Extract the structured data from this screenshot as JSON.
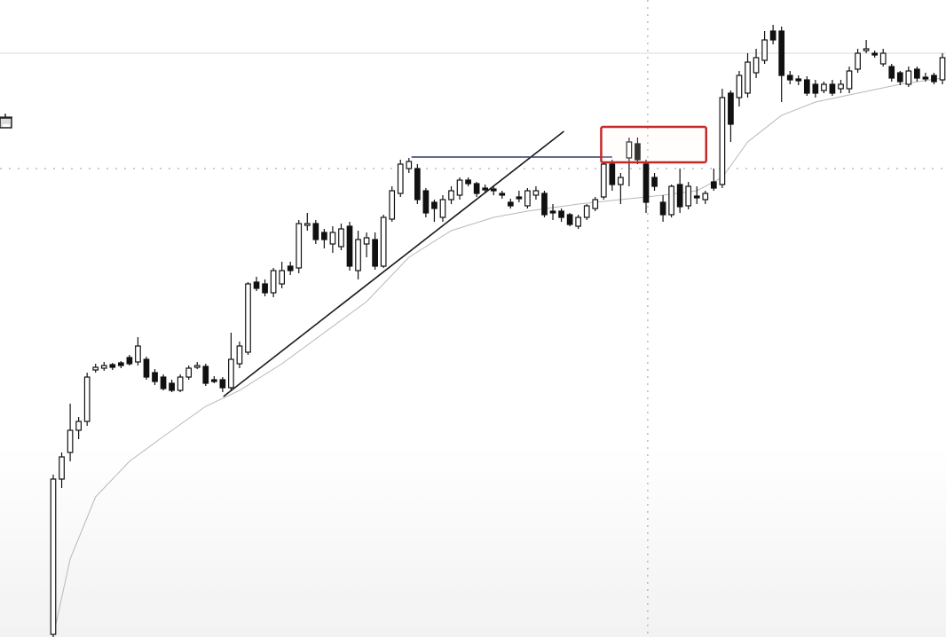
{
  "chart_data": {
    "type": "candlestick",
    "title": "",
    "xlabel": "",
    "ylabel": "",
    "grid": false,
    "xlim": [
      0,
      105
    ],
    "ylim": [
      0,
      720
    ],
    "candle_fields": [
      "open",
      "high",
      "low",
      "close"
    ],
    "candles": [
      [
        5,
        185,
        2,
        180
      ],
      [
        180,
        210,
        170,
        205
      ],
      [
        210,
        265,
        200,
        235
      ],
      [
        235,
        250,
        225,
        245
      ],
      [
        245,
        300,
        240,
        295
      ],
      [
        303,
        310,
        300,
        306
      ],
      [
        305,
        312,
        302,
        308
      ],
      [
        309,
        311,
        303,
        306
      ],
      [
        311,
        313,
        305,
        308
      ],
      [
        317,
        320,
        308,
        310
      ],
      [
        312,
        340,
        308,
        330
      ],
      [
        315,
        318,
        292,
        295
      ],
      [
        300,
        304,
        286,
        290
      ],
      [
        295,
        298,
        280,
        282
      ],
      [
        288,
        292,
        278,
        280
      ],
      [
        280,
        298,
        278,
        295
      ],
      [
        295,
        308,
        292,
        305
      ],
      [
        306,
        312,
        304,
        308
      ],
      [
        307,
        310,
        285,
        288
      ],
      [
        292,
        296,
        288,
        290
      ],
      [
        292,
        295,
        278,
        283
      ],
      [
        283,
        345,
        280,
        315
      ],
      [
        310,
        335,
        305,
        330
      ],
      [
        323,
        402,
        320,
        400
      ],
      [
        402,
        408,
        392,
        395
      ],
      [
        400,
        405,
        386,
        390
      ],
      [
        390,
        418,
        385,
        415
      ],
      [
        400,
        425,
        395,
        415
      ],
      [
        420,
        425,
        410,
        415
      ],
      [
        418,
        472,
        412,
        468
      ],
      [
        466,
        480,
        460,
        468
      ],
      [
        468,
        472,
        445,
        450
      ],
      [
        458,
        462,
        440,
        450
      ],
      [
        445,
        465,
        435,
        458
      ],
      [
        442,
        468,
        438,
        462
      ],
      [
        465,
        470,
        415,
        420
      ],
      [
        415,
        460,
        405,
        450
      ],
      [
        445,
        458,
        430,
        452
      ],
      [
        450,
        458,
        416,
        420
      ],
      [
        420,
        478,
        418,
        475
      ],
      [
        473,
        510,
        470,
        505
      ],
      [
        502,
        540,
        498,
        535
      ],
      [
        530,
        542,
        525,
        538
      ],
      [
        530,
        535,
        490,
        495
      ],
      [
        505,
        508,
        475,
        480
      ],
      [
        492,
        495,
        470,
        485
      ],
      [
        475,
        500,
        470,
        495
      ],
      [
        495,
        510,
        490,
        505
      ],
      [
        500,
        520,
        495,
        517
      ],
      [
        517,
        520,
        510,
        513
      ],
      [
        513,
        515,
        498,
        502
      ],
      [
        508,
        512,
        502,
        506
      ],
      [
        507,
        510,
        500,
        505
      ],
      [
        502,
        505,
        496,
        500
      ],
      [
        492,
        496,
        485,
        488
      ],
      [
        498,
        505,
        492,
        496
      ],
      [
        488,
        508,
        485,
        505
      ],
      [
        500,
        510,
        495,
        505
      ],
      [
        502,
        505,
        475,
        478
      ],
      [
        482,
        490,
        472,
        480
      ],
      [
        482,
        485,
        470,
        475
      ],
      [
        478,
        480,
        465,
        467
      ],
      [
        465,
        478,
        462,
        475
      ],
      [
        475,
        490,
        472,
        488
      ],
      [
        485,
        498,
        482,
        495
      ],
      [
        498,
        538,
        495,
        535
      ],
      [
        535,
        540,
        505,
        512
      ],
      [
        512,
        525,
        490,
        520
      ],
      [
        542,
        565,
        510,
        560
      ],
      [
        558,
        565,
        535,
        540
      ],
      [
        535,
        540,
        480,
        492
      ],
      [
        520,
        525,
        505,
        510
      ],
      [
        492,
        500,
        470,
        478
      ],
      [
        478,
        512,
        475,
        510
      ],
      [
        512,
        530,
        480,
        487
      ],
      [
        488,
        515,
        484,
        510
      ],
      [
        499,
        510,
        490,
        497
      ],
      [
        495,
        505,
        490,
        502
      ],
      [
        515,
        530,
        505,
        508
      ],
      [
        512,
        620,
        508,
        610
      ],
      [
        615,
        618,
        560,
        580
      ],
      [
        610,
        640,
        600,
        635
      ],
      [
        615,
        660,
        610,
        650
      ],
      [
        638,
        665,
        632,
        655
      ],
      [
        652,
        685,
        648,
        675
      ],
      [
        685,
        692,
        670,
        675
      ],
      [
        685,
        690,
        605,
        635
      ],
      [
        635,
        640,
        625,
        630
      ],
      [
        631,
        635,
        624,
        629
      ],
      [
        630,
        634,
        612,
        615
      ],
      [
        625,
        630,
        610,
        615
      ],
      [
        618,
        628,
        615,
        625
      ],
      [
        625,
        630,
        612,
        615
      ],
      [
        620,
        630,
        615,
        625
      ],
      [
        620,
        645,
        615,
        640
      ],
      [
        642,
        665,
        638,
        660
      ],
      [
        664,
        675,
        660,
        665
      ],
      [
        660,
        663,
        655,
        659
      ],
      [
        648,
        665,
        645,
        660
      ],
      [
        645,
        648,
        628,
        632
      ],
      [
        638,
        640,
        624,
        628
      ],
      [
        625,
        645,
        622,
        640
      ],
      [
        642,
        645,
        628,
        632
      ],
      [
        633,
        638,
        628,
        632
      ],
      [
        635,
        638,
        625,
        628
      ],
      [
        630,
        660,
        625,
        655
      ]
    ],
    "moving_average": [
      [
        0,
        3
      ],
      [
        2,
        90
      ],
      [
        5,
        160
      ],
      [
        9,
        200
      ],
      [
        13,
        228
      ],
      [
        18,
        262
      ],
      [
        22,
        280
      ],
      [
        27,
        310
      ],
      [
        32,
        345
      ],
      [
        37,
        380
      ],
      [
        42,
        430
      ],
      [
        47,
        460
      ],
      [
        52,
        475
      ],
      [
        56,
        482
      ],
      [
        62,
        490
      ],
      [
        67,
        495
      ],
      [
        72,
        500
      ],
      [
        76,
        505
      ],
      [
        79,
        520
      ],
      [
        82,
        560
      ],
      [
        86,
        590
      ],
      [
        90,
        605
      ],
      [
        95,
        615
      ],
      [
        100,
        625
      ],
      [
        105,
        632
      ]
    ],
    "annotations": {
      "trendline": [
        [
          20.1,
          273
        ],
        [
          60.3,
          572
        ]
      ],
      "horizontal_line": {
        "price": 543,
        "from": 42.3,
        "to": 66
      },
      "highlight_box": {
        "from": 64.7,
        "to": 77.1,
        "low": 537,
        "high": 577
      },
      "crosshair": {
        "index": 70.2,
        "price": 530
      },
      "reference_line": 660
    },
    "colors": {
      "up_fill": "#ffffff",
      "down_fill": "#111111",
      "outline": "#111111",
      "trendline": "#1a1a1a",
      "horizontal_line": "#2c3e66",
      "highlight_box": "#c62828",
      "moving_average": "#b8b8b8",
      "crosshair": "#999999"
    }
  }
}
